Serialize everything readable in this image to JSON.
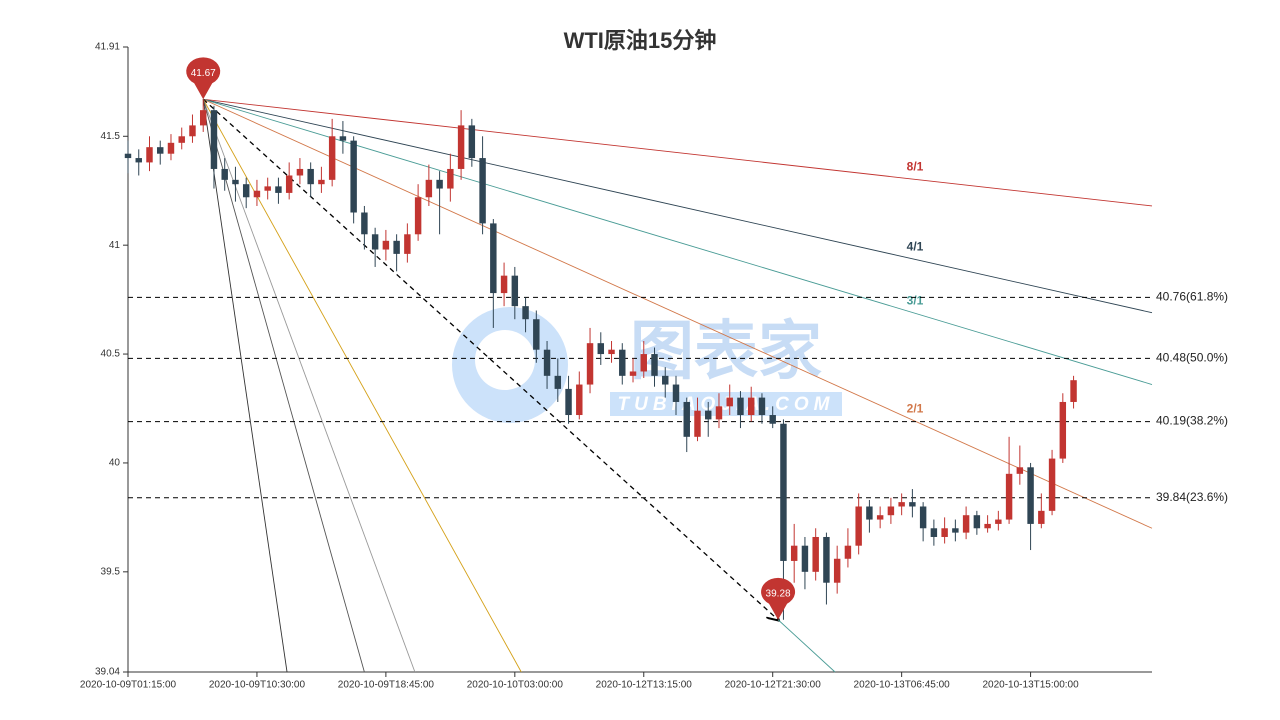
{
  "chart_data": {
    "type": "candlestick",
    "title": "WTI原油15分钟",
    "watermark": {
      "text": "图表家",
      "subtext": "TUBIAOJIA.COM"
    },
    "xlim": [
      0,
      95.3
    ],
    "xticks": [
      {
        "value": 0,
        "label": "2020-10-09T01:15:00"
      },
      {
        "value": 12,
        "label": "2020-10-09T10:30:00"
      },
      {
        "value": 24,
        "label": "2020-10-09T18:45:00"
      },
      {
        "value": 36,
        "label": "2020-10-10T03:00:00"
      },
      {
        "value": 48,
        "label": "2020-10-12T13:15:00"
      },
      {
        "value": 60,
        "label": "2020-10-12T21:30:00"
      },
      {
        "value": 72,
        "label": "2020-10-13T06:45:00"
      },
      {
        "value": 84,
        "label": "2020-10-13T15:00:00"
      }
    ],
    "ylim": [
      39.04,
      41.91
    ],
    "yticks": [
      39.04,
      39.5,
      40,
      40.5,
      41,
      41.5,
      41.91
    ],
    "up_color": "#c23531",
    "down_color": "#2f4554",
    "candles": {
      "open": [
        41.42,
        41.4,
        41.38,
        41.45,
        41.42,
        41.47,
        41.5,
        41.55,
        41.62,
        41.35,
        41.3,
        41.28,
        41.22,
        41.25,
        41.27,
        41.24,
        41.32,
        41.35,
        41.28,
        41.3,
        41.5,
        41.48,
        41.15,
        41.05,
        40.98,
        41.02,
        40.96,
        41.05,
        41.22,
        41.3,
        41.26,
        41.35,
        41.55,
        41.4,
        41.1,
        40.78,
        40.86,
        40.72,
        40.66,
        40.52,
        40.4,
        40.34,
        40.22,
        40.36,
        40.55,
        40.5,
        40.52,
        40.4,
        40.42,
        40.5,
        40.4,
        40.36,
        40.28,
        40.12,
        40.24,
        40.2,
        40.26,
        40.3,
        40.22,
        40.3,
        40.22,
        40.18,
        39.55,
        39.62,
        39.5,
        39.66,
        39.45,
        39.56,
        39.62,
        39.8,
        39.74,
        39.76,
        39.8,
        39.82,
        39.8,
        39.7,
        39.66,
        39.7,
        39.68,
        39.76,
        39.7,
        39.72,
        39.74,
        39.95,
        39.98,
        39.72,
        39.78,
        40.02,
        40.28
      ],
      "high": [
        41.48,
        41.44,
        41.5,
        41.48,
        41.51,
        41.54,
        41.6,
        41.67,
        41.64,
        41.4,
        41.36,
        41.31,
        41.3,
        41.31,
        41.31,
        41.38,
        41.4,
        41.38,
        41.36,
        41.58,
        41.57,
        41.5,
        41.18,
        41.08,
        41.07,
        41.05,
        41.1,
        41.28,
        41.37,
        41.34,
        41.42,
        41.62,
        41.58,
        41.5,
        41.12,
        40.92,
        40.9,
        40.76,
        40.7,
        40.56,
        40.48,
        40.4,
        40.42,
        40.62,
        40.6,
        40.56,
        40.55,
        40.48,
        40.56,
        40.53,
        40.44,
        40.4,
        40.3,
        40.3,
        40.28,
        40.32,
        40.36,
        40.33,
        40.35,
        40.32,
        40.26,
        40.2,
        39.72,
        39.66,
        39.7,
        39.68,
        39.62,
        39.7,
        39.86,
        39.83,
        39.8,
        39.84,
        39.86,
        39.88,
        39.82,
        39.74,
        39.75,
        39.74,
        39.8,
        39.78,
        39.76,
        39.78,
        40.12,
        40.08,
        40.0,
        39.86,
        40.06,
        40.32,
        40.4
      ],
      "low": [
        41.33,
        41.32,
        41.34,
        41.37,
        41.39,
        41.44,
        41.47,
        41.52,
        41.26,
        41.25,
        41.2,
        41.17,
        41.18,
        41.21,
        41.19,
        41.21,
        41.28,
        41.22,
        41.24,
        41.27,
        41.42,
        41.1,
        40.98,
        40.9,
        40.93,
        40.88,
        40.92,
        41.02,
        41.18,
        41.05,
        41.2,
        41.3,
        41.36,
        41.05,
        40.62,
        40.72,
        40.66,
        40.6,
        40.46,
        40.34,
        40.28,
        40.18,
        40.2,
        40.32,
        40.45,
        40.46,
        40.36,
        40.37,
        40.39,
        40.35,
        40.3,
        40.22,
        40.05,
        40.1,
        40.12,
        40.16,
        40.22,
        40.16,
        40.19,
        40.18,
        40.16,
        39.28,
        39.45,
        39.42,
        39.46,
        39.35,
        39.4,
        39.52,
        39.58,
        39.68,
        39.7,
        39.72,
        39.76,
        39.75,
        39.64,
        39.62,
        39.63,
        39.64,
        39.65,
        39.67,
        39.68,
        39.69,
        39.72,
        39.9,
        39.6,
        39.7,
        39.76,
        40.0,
        40.25
      ],
      "close": [
        41.4,
        41.38,
        41.45,
        41.42,
        41.47,
        41.5,
        41.55,
        41.62,
        41.35,
        41.3,
        41.28,
        41.22,
        41.25,
        41.27,
        41.24,
        41.32,
        41.35,
        41.28,
        41.3,
        41.5,
        41.48,
        41.15,
        41.05,
        40.98,
        41.02,
        40.96,
        41.05,
        41.22,
        41.3,
        41.26,
        41.35,
        41.55,
        41.4,
        41.1,
        40.78,
        40.86,
        40.72,
        40.66,
        40.52,
        40.4,
        40.34,
        40.22,
        40.36,
        40.55,
        40.5,
        40.52,
        40.4,
        40.42,
        40.5,
        40.4,
        40.36,
        40.28,
        40.12,
        40.24,
        40.2,
        40.26,
        40.3,
        40.22,
        40.3,
        40.22,
        40.18,
        39.55,
        39.62,
        39.5,
        39.66,
        39.45,
        39.56,
        39.62,
        39.8,
        39.74,
        39.76,
        39.8,
        39.82,
        39.8,
        39.7,
        39.66,
        39.7,
        39.68,
        39.76,
        39.7,
        39.72,
        39.74,
        39.95,
        39.98,
        39.72,
        39.78,
        40.02,
        40.28,
        40.38
      ]
    },
    "markers": [
      {
        "x": 7,
        "value": 41.67,
        "color": "#c23531"
      },
      {
        "x": 60.5,
        "value": 39.28,
        "color": "#c23531"
      }
    ],
    "gann_lines": [
      {
        "label": "8/1",
        "color": "#c23531",
        "from": [
          7,
          41.67
        ],
        "to": [
          95.3,
          41.18
        ]
      },
      {
        "label": "4/1",
        "color": "#2f4554",
        "from": [
          7,
          41.67
        ],
        "to": [
          95.3,
          40.69
        ]
      },
      {
        "label": "3/1",
        "color": "#4a9c96",
        "from": [
          7,
          41.67
        ],
        "to": [
          95.3,
          40.36
        ]
      },
      {
        "label": "2/1",
        "color": "#d2784a",
        "from": [
          7,
          41.67
        ],
        "to": [
          95.3,
          39.7
        ]
      },
      {
        "color": "#000000",
        "dashed": true,
        "arrow": true,
        "from": [
          7,
          41.67
        ],
        "to": [
          60.5,
          39.28
        ]
      },
      {
        "color": "#4a9c96",
        "from": [
          60.5,
          39.28
        ],
        "to": [
          65.8,
          39.04
        ]
      },
      {
        "color": "#d4a017",
        "from": [
          7,
          41.67
        ],
        "to": [
          36.6,
          39.04
        ]
      },
      {
        "color": "#999999",
        "from": [
          7,
          41.67
        ],
        "to": [
          26.7,
          39.04
        ]
      },
      {
        "color": "#555555",
        "from": [
          7,
          41.67
        ],
        "to": [
          22.0,
          39.04
        ]
      },
      {
        "color": "#333333",
        "from": [
          7,
          41.67
        ],
        "to": [
          14.8,
          39.04
        ]
      }
    ],
    "levels": [
      {
        "value": 40.76,
        "label": "40.76(61.8%)"
      },
      {
        "value": 40.48,
        "label": "40.48(50.0%)"
      },
      {
        "value": 40.19,
        "label": "40.19(38.2%)"
      },
      {
        "value": 39.84,
        "label": "39.84(23.6%)"
      }
    ]
  }
}
